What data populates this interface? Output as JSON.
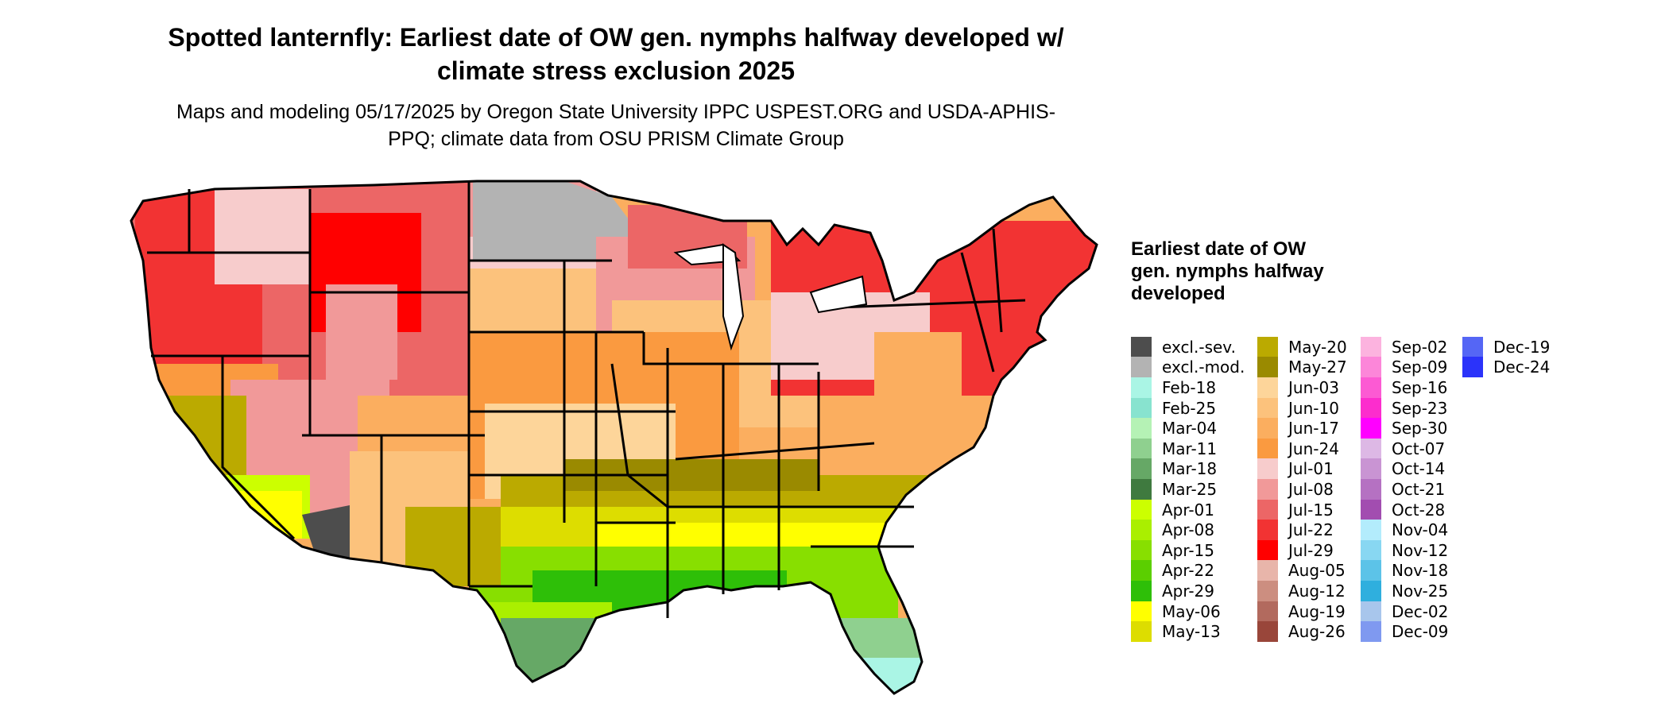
{
  "title": "Spotted lanternfly: Earliest date of OW gen. nymphs halfway developed w/ climate stress exclusion 2025",
  "subtitle": "Maps and modeling 05/17/2025 by Oregon State University IPPC USPEST.ORG and USDA-APHIS-PPQ; climate data from OSU PRISM Climate Group",
  "legend": {
    "title": "Earliest date of OW gen. nymphs halfway developed",
    "columns": [
      [
        {
          "label": "excl.-sev.",
          "color": "#4d4d4d"
        },
        {
          "label": "excl.-mod.",
          "color": "#b3b3b3"
        },
        {
          "label": "Feb-18",
          "color": "#aaf5e5"
        },
        {
          "label": "Feb-25",
          "color": "#88e3cf"
        },
        {
          "label": "Mar-04",
          "color": "#b5f2b5"
        },
        {
          "label": "Mar-11",
          "color": "#8fd08f"
        },
        {
          "label": "Mar-18",
          "color": "#66a866"
        },
        {
          "label": "Mar-25",
          "color": "#3f7a3f"
        },
        {
          "label": "Apr-01",
          "color": "#ccff00"
        },
        {
          "label": "Apr-08",
          "color": "#aaef00"
        },
        {
          "label": "Apr-15",
          "color": "#88df00"
        },
        {
          "label": "Apr-22",
          "color": "#5bcf00"
        },
        {
          "label": "Apr-29",
          "color": "#2ebf08"
        },
        {
          "label": "May-06",
          "color": "#ffff00"
        },
        {
          "label": "May-13",
          "color": "#dddd00"
        }
      ],
      [
        {
          "label": "May-20",
          "color": "#bbaa00"
        },
        {
          "label": "May-27",
          "color": "#9a8a00"
        },
        {
          "label": "Jun-03",
          "color": "#fdd59a"
        },
        {
          "label": "Jun-10",
          "color": "#fcc27c"
        },
        {
          "label": "Jun-17",
          "color": "#fbae5f"
        },
        {
          "label": "Jun-24",
          "color": "#fa9a40"
        },
        {
          "label": "Jul-01",
          "color": "#f7cccc"
        },
        {
          "label": "Jul-08",
          "color": "#f19999"
        },
        {
          "label": "Jul-15",
          "color": "#ec6666"
        },
        {
          "label": "Jul-22",
          "color": "#f23333"
        },
        {
          "label": "Jul-29",
          "color": "#ff0000"
        },
        {
          "label": "Aug-05",
          "color": "#e8b5aa"
        },
        {
          "label": "Aug-12",
          "color": "#cc8e80"
        },
        {
          "label": "Aug-19",
          "color": "#b26a5e"
        },
        {
          "label": "Aug-26",
          "color": "#99463a"
        }
      ],
      [
        {
          "label": "Sep-02",
          "color": "#fcb3df"
        },
        {
          "label": "Sep-09",
          "color": "#fc86d9"
        },
        {
          "label": "Sep-16",
          "color": "#fc5ad3"
        },
        {
          "label": "Sep-23",
          "color": "#fc2dcd"
        },
        {
          "label": "Sep-30",
          "color": "#ff00ff"
        },
        {
          "label": "Oct-07",
          "color": "#ddb8e5"
        },
        {
          "label": "Oct-14",
          "color": "#c994d3"
        },
        {
          "label": "Oct-21",
          "color": "#b571c2"
        },
        {
          "label": "Oct-28",
          "color": "#a24db0"
        },
        {
          "label": "Nov-04",
          "color": "#b3ecfc"
        },
        {
          "label": "Nov-12",
          "color": "#88d7f2"
        },
        {
          "label": "Nov-18",
          "color": "#5cc3e8"
        },
        {
          "label": "Nov-25",
          "color": "#2fafde"
        },
        {
          "label": "Dec-02",
          "color": "#a8c6ec"
        },
        {
          "label": "Dec-09",
          "color": "#7f99f0"
        }
      ],
      [
        {
          "label": "Dec-19",
          "color": "#5566f5"
        },
        {
          "label": "Dec-24",
          "color": "#2b33fa"
        }
      ]
    ]
  }
}
